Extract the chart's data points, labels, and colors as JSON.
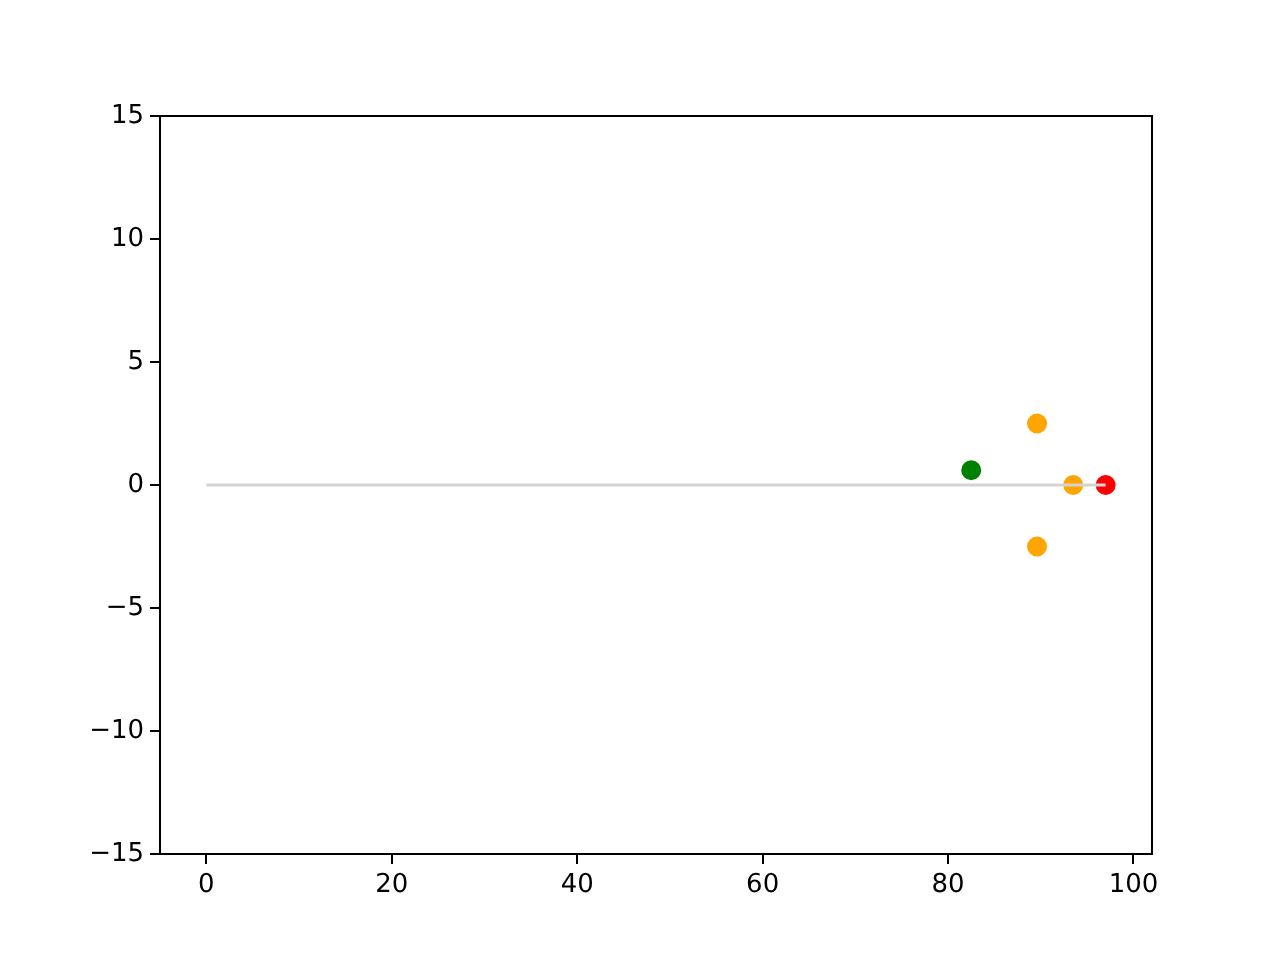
{
  "chart_data": {
    "type": "scatter",
    "xlim": [
      -5,
      102
    ],
    "xticks": [
      0,
      20,
      40,
      60,
      80,
      100
    ],
    "ylim": [
      -15,
      15
    ],
    "yticks": [
      -15,
      -10,
      -5,
      0,
      5,
      10,
      15
    ],
    "grid": false,
    "legend": false,
    "series": [
      {
        "type": "line",
        "color": "#d3d3d3",
        "x": [
          0,
          97
        ],
        "values": [
          0,
          0
        ],
        "marker": "none"
      },
      {
        "type": "scatter",
        "x": [
          82.5,
          89.6,
          93.5,
          89.6,
          97.0
        ],
        "values": [
          0.6,
          2.5,
          0,
          -2.5,
          0
        ],
        "colors": [
          "#008000",
          "#ffa500",
          "#ffa500",
          "#ffa500",
          "#ff0000"
        ],
        "marker": "circle"
      }
    ]
  }
}
